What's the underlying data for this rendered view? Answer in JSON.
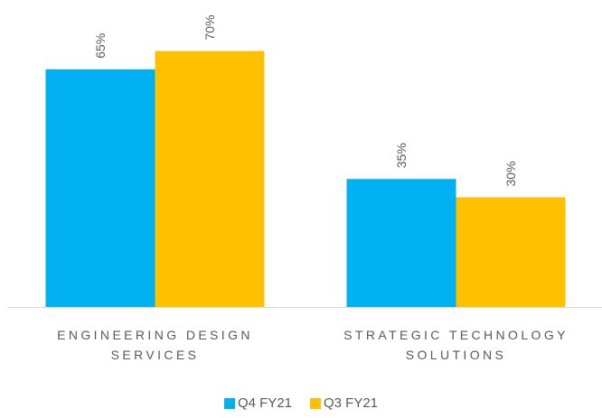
{
  "chart_data": {
    "type": "bar",
    "categories": [
      "ENGINEERING DESIGN SERVICES",
      "STRATEGIC TECHNOLOGY SOLUTIONS"
    ],
    "series": [
      {
        "name": "Q4 FY21",
        "color": "#00b0f0",
        "values": [
          65,
          35
        ],
        "value_labels": [
          "65%",
          "35%"
        ]
      },
      {
        "name": "Q3 FY21",
        "color": "#ffc000",
        "values": [
          70,
          30
        ],
        "value_labels": [
          "70%",
          "30%"
        ]
      }
    ]
  }
}
